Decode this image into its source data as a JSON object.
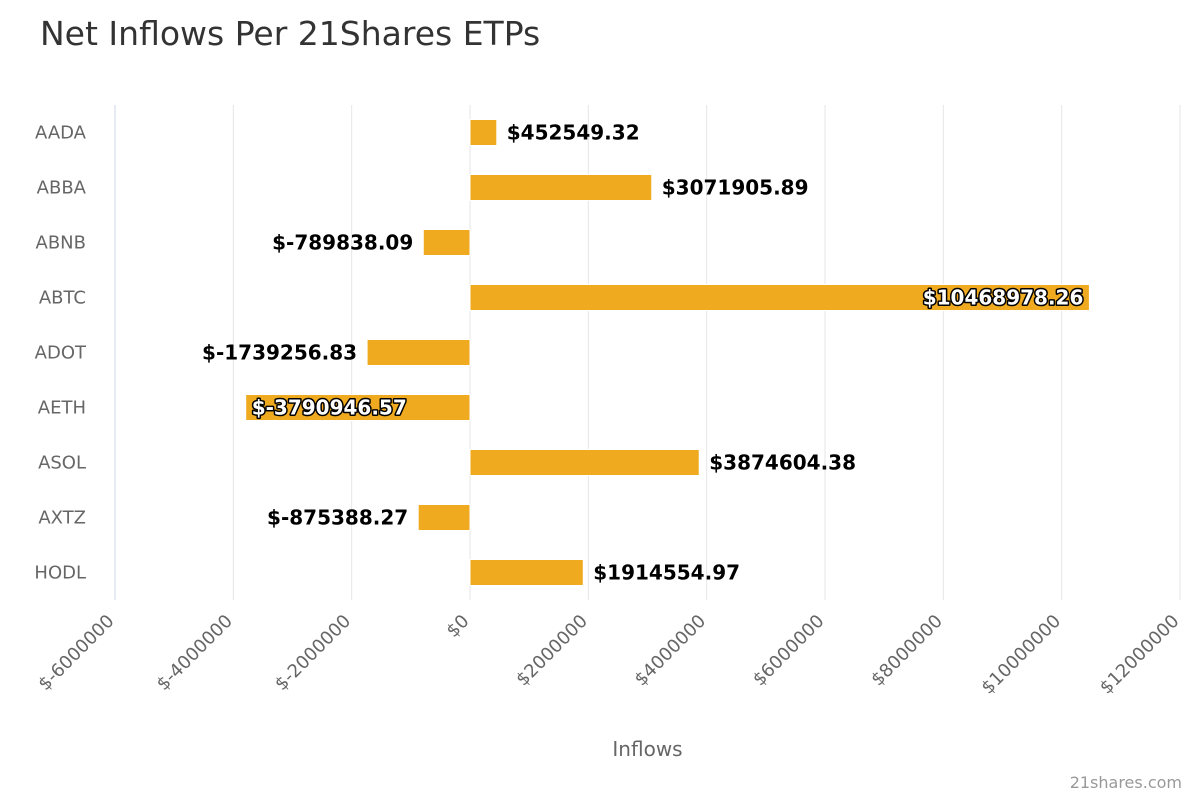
{
  "chart_data": {
    "type": "bar",
    "orientation": "horizontal",
    "title": "Net Inflows Per 21Shares ETPs",
    "xlabel": "Inflows",
    "ylabel": "",
    "categories": [
      "AADA",
      "ABBA",
      "ABNB",
      "ABTC",
      "ADOT",
      "AETH",
      "ASOL",
      "AXTZ",
      "HODL"
    ],
    "values": [
      452549.32,
      3071905.89,
      -789838.09,
      10468978.26,
      -1739256.83,
      -3790946.57,
      3874604.38,
      -875388.27,
      1914554.97
    ],
    "data_labels": [
      "$452549.32",
      "$3071905.89",
      "$-789838.09",
      "$10468978.26",
      "$-1739256.83",
      "$-3790946.57",
      "$3874604.38",
      "$-875388.27",
      "$1914554.97"
    ],
    "xlim": [
      -6000000,
      12000000
    ],
    "ticks": [
      -6000000,
      -4000000,
      -2000000,
      0,
      2000000,
      4000000,
      6000000,
      8000000,
      10000000,
      12000000
    ],
    "tick_labels": [
      "$-6000000",
      "$-4000000",
      "$-2000000",
      "$0",
      "$2000000",
      "$4000000",
      "$6000000",
      "$8000000",
      "$10000000",
      "$12000000"
    ],
    "grid": true,
    "bar_color": "#F0AA1F",
    "grid_color": "#E6E6E6",
    "axis_color": "#CCD6EB"
  },
  "credit": "21shares.com"
}
